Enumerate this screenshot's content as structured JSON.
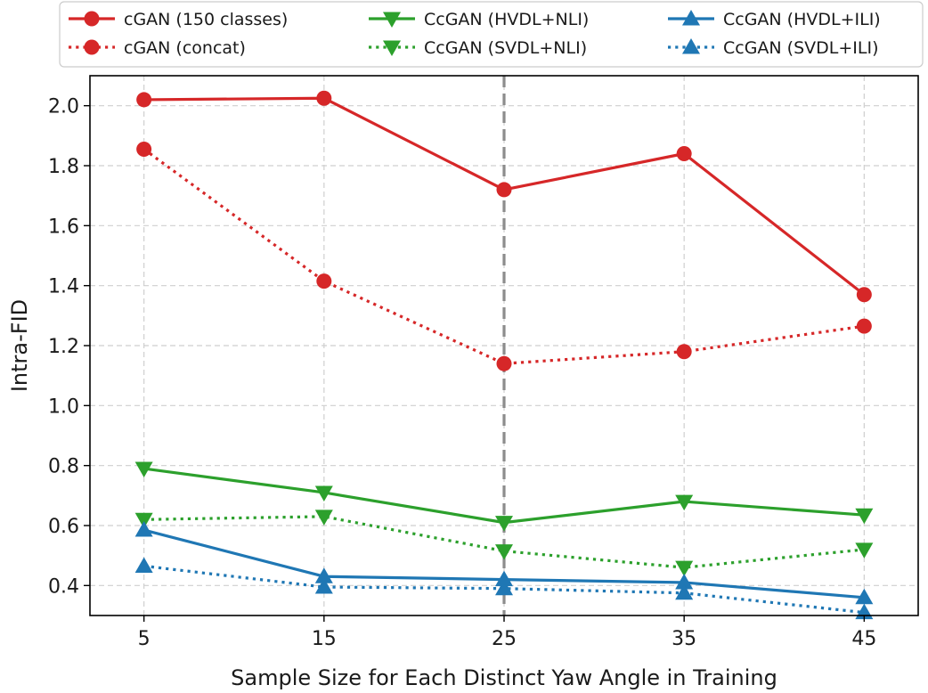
{
  "chart_data": {
    "type": "line",
    "title": "",
    "xlabel": "Sample Size for Each Distinct Yaw Angle in Training",
    "ylabel": "Intra-FID",
    "x": [
      5,
      15,
      25,
      35,
      45
    ],
    "xticks": [
      "5",
      "15",
      "25",
      "35",
      "45"
    ],
    "yticks": [
      "0.4",
      "0.6",
      "0.8",
      "1.0",
      "1.2",
      "1.4",
      "1.6",
      "1.8",
      "2.0"
    ],
    "xlim": [
      2,
      48
    ],
    "ylim": [
      0.3,
      2.1
    ],
    "grid": true,
    "vline_x": 25,
    "legend_position": "top",
    "series": [
      {
        "name": "cGAN (150 classes)",
        "values": [
          2.02,
          2.025,
          1.72,
          1.84,
          1.37
        ],
        "color": "#d62728",
        "style": "solid",
        "marker": "circle"
      },
      {
        "name": "cGAN (concat)",
        "values": [
          1.855,
          1.415,
          1.14,
          1.18,
          1.265
        ],
        "color": "#d62728",
        "style": "dotted",
        "marker": "circle"
      },
      {
        "name": "CcGAN (HVDL+NLI)",
        "values": [
          0.79,
          0.71,
          0.61,
          0.68,
          0.635
        ],
        "color": "#2ca02c",
        "style": "solid",
        "marker": "triangle-down"
      },
      {
        "name": "CcGAN (SVDL+NLI)",
        "values": [
          0.62,
          0.63,
          0.515,
          0.46,
          0.52
        ],
        "color": "#2ca02c",
        "style": "dotted",
        "marker": "triangle-down"
      },
      {
        "name": "CcGAN (HVDL+ILI)",
        "values": [
          0.585,
          0.43,
          0.42,
          0.41,
          0.36
        ],
        "color": "#1f77b4",
        "style": "solid",
        "marker": "triangle-up"
      },
      {
        "name": "CcGAN (SVDL+ILI)",
        "values": [
          0.465,
          0.395,
          0.39,
          0.375,
          0.31
        ],
        "color": "#1f77b4",
        "style": "dotted",
        "marker": "triangle-up"
      }
    ]
  }
}
